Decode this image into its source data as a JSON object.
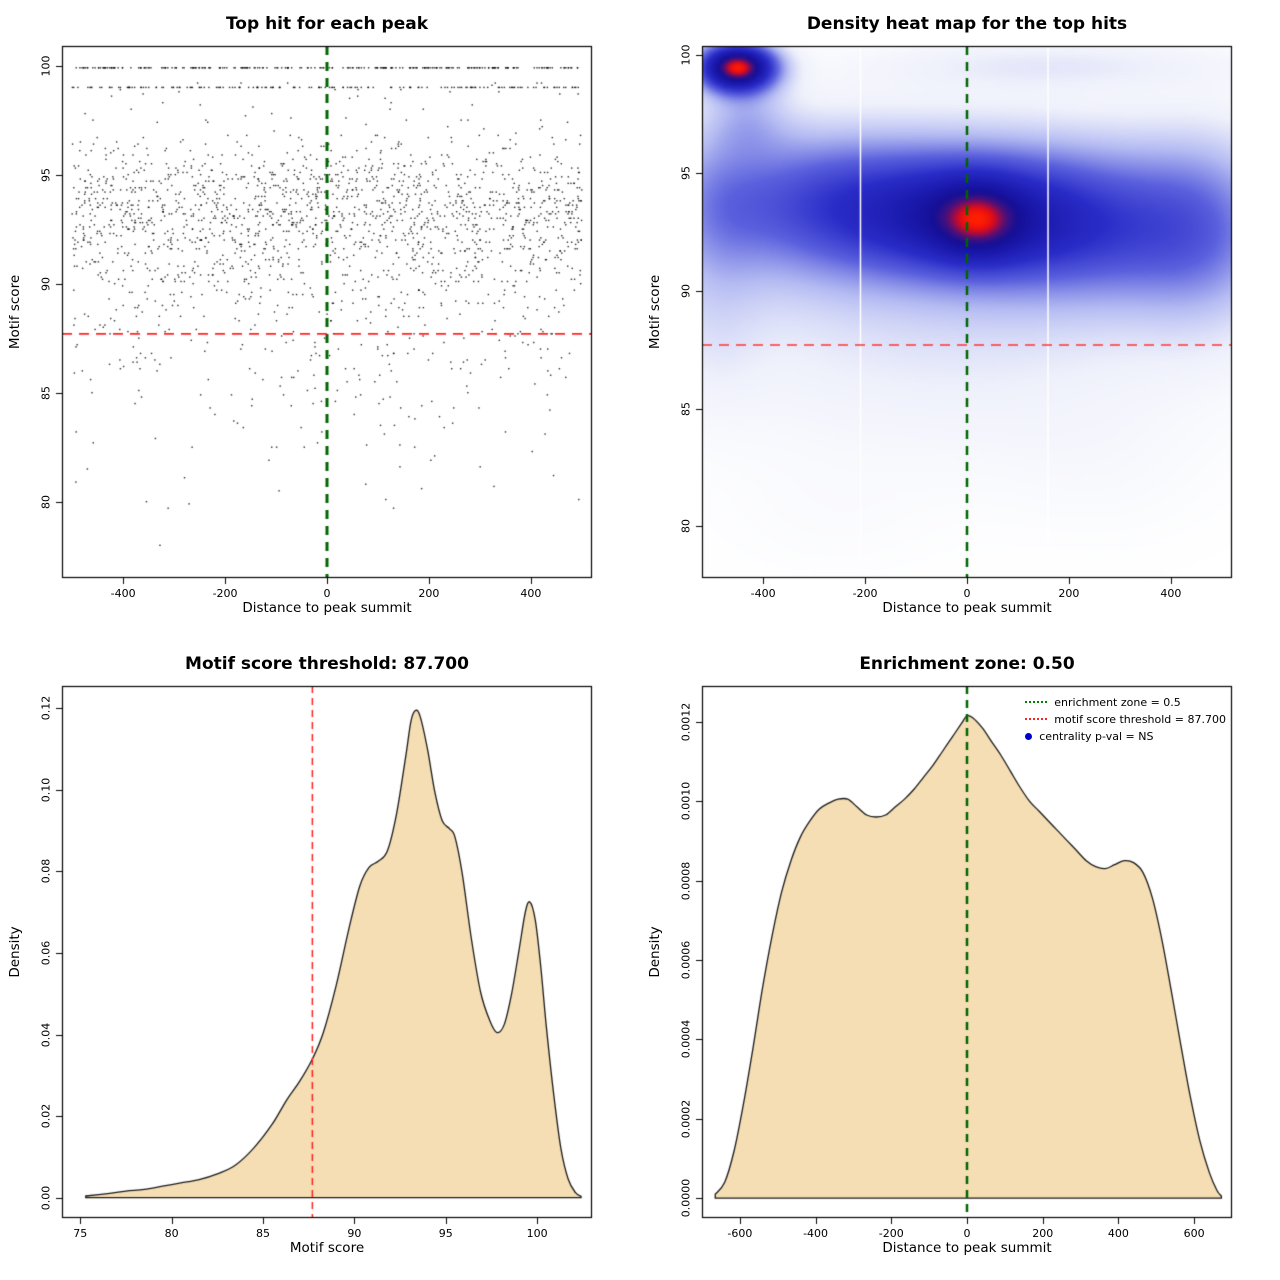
{
  "figure": {
    "background": "#ffffff"
  },
  "chart_data": [
    {
      "type": "scatter",
      "title": "Top hit for each peak",
      "xlabel": "Distance to peak summit",
      "ylabel": "Motif score",
      "xlim": [
        -520,
        520
      ],
      "ylim": [
        76.5,
        100.9
      ],
      "xticks": [
        {
          "v": -400,
          "l": "-400"
        },
        {
          "v": -200,
          "l": "-200"
        },
        {
          "v": 0,
          "l": "0"
        },
        {
          "v": 200,
          "l": "200"
        },
        {
          "v": 400,
          "l": "400"
        }
      ],
      "yticks": [
        {
          "v": 80,
          "l": "80"
        },
        {
          "v": 85,
          "l": "85"
        },
        {
          "v": 90,
          "l": "90"
        },
        {
          "v": 95,
          "l": "95"
        },
        {
          "v": 100,
          "l": "100"
        }
      ],
      "point_color": "#000000",
      "points": {
        "n": 2400,
        "seed": 1234,
        "x_range": [
          -500,
          500
        ],
        "quantize": 0.1,
        "y_clip": [
          77.3,
          99.3
        ],
        "bands": [
          {
            "y": 99.9,
            "frac": 0.105
          },
          {
            "y": 99.0,
            "frac": 0.065
          }
        ],
        "cloud": [
          {
            "mu": 93.2,
            "sd": 1.4,
            "w": 0.34
          },
          {
            "mu": 91.2,
            "sd": 2.0,
            "w": 0.2
          },
          {
            "mu": 94.6,
            "sd": 1.1,
            "w": 0.12
          },
          {
            "mu": 88.5,
            "sd": 2.6,
            "w": 0.09
          },
          {
            "mu": 85.5,
            "sd": 3.2,
            "w": 0.05
          },
          {
            "mu": 96.3,
            "sd": 1.0,
            "w": 0.02
          },
          {
            "mu": 98.6,
            "sd": 0.6,
            "w": 0.015
          }
        ]
      },
      "hline": {
        "y": 87.7,
        "color": "#ff2222",
        "dash": [
          10,
          7
        ],
        "width": 1.8
      },
      "vline": {
        "x": 0,
        "color": "#006400",
        "dash": [
          9,
          7
        ],
        "width": 3
      }
    },
    {
      "type": "heatmap",
      "title": "Density heat map for the top hits",
      "xlabel": "Distance to peak summit",
      "ylabel": "Motif score",
      "xlim": [
        -520,
        520
      ],
      "ylim": [
        77.8,
        100.4
      ],
      "xticks": [
        {
          "v": -400,
          "l": "-400"
        },
        {
          "v": -200,
          "l": "-200"
        },
        {
          "v": 0,
          "l": "0"
        },
        {
          "v": 200,
          "l": "200"
        },
        {
          "v": 400,
          "l": "400"
        }
      ],
      "yticks": [
        {
          "v": 80,
          "l": "80"
        },
        {
          "v": 85,
          "l": "85"
        },
        {
          "v": 90,
          "l": "90"
        },
        {
          "v": 95,
          "l": "95"
        },
        {
          "v": 100,
          "l": "100"
        }
      ],
      "blobs": [
        {
          "x": 10,
          "y": 93.1,
          "sx": 150,
          "sy": 1.7,
          "a": 1.05
        },
        {
          "x": 20,
          "y": 93.0,
          "sx": 55,
          "sy": 1.05,
          "a": 0.6
        },
        {
          "x": -290,
          "y": 93.6,
          "sx": 160,
          "sy": 2.0,
          "a": 0.6
        },
        {
          "x": 300,
          "y": 92.6,
          "sx": 170,
          "sy": 2.1,
          "a": 0.55
        },
        {
          "x": -450,
          "y": 99.5,
          "sx": 52,
          "sy": 0.7,
          "a": 2.2
        },
        {
          "x": 0,
          "y": 91.5,
          "sx": 430,
          "sy": 3.2,
          "a": 0.38
        },
        {
          "x": 0,
          "y": 95.4,
          "sx": 390,
          "sy": 1.8,
          "a": 0.22
        },
        {
          "x": 470,
          "y": 92.5,
          "sx": 95,
          "sy": 2.9,
          "a": 0.3
        },
        {
          "x": -495,
          "y": 93.5,
          "sx": 70,
          "sy": 2.6,
          "a": 0.26
        },
        {
          "x": -80,
          "y": 85.6,
          "sx": 360,
          "sy": 2.6,
          "a": 0.1
        },
        {
          "x": 160,
          "y": 99.6,
          "sx": 260,
          "sy": 0.75,
          "a": 0.2
        },
        {
          "x": -430,
          "y": 97.4,
          "sx": 60,
          "sy": 1.1,
          "a": 0.28
        },
        {
          "x": -500,
          "y": 88.0,
          "sx": 70,
          "sy": 2.2,
          "a": 0.1
        },
        {
          "x": 260,
          "y": 82.3,
          "sx": 160,
          "sy": 2.2,
          "a": 0.05
        },
        {
          "x": -260,
          "y": 80.3,
          "sx": 160,
          "sy": 1.8,
          "a": 0.04
        }
      ],
      "colormap": [
        [
          0,
          "#ffffff"
        ],
        [
          0.08,
          "#eef0fb"
        ],
        [
          0.2,
          "#b4bbf2"
        ],
        [
          0.35,
          "#5a60dd"
        ],
        [
          0.5,
          "#2a2cc8"
        ],
        [
          0.65,
          "#1b1aae"
        ],
        [
          0.78,
          "#150f96"
        ],
        [
          0.86,
          "#43107e"
        ],
        [
          0.91,
          "#8f0c52"
        ],
        [
          0.955,
          "#e30b16"
        ],
        [
          1,
          "#ff2000"
        ]
      ],
      "white_vlines": [
        -210,
        158
      ],
      "hline": {
        "y": 87.7,
        "color": "#ff3333",
        "dash": [
          10,
          7
        ],
        "width": 1.5
      },
      "vline": {
        "x": 0,
        "color": "#006400",
        "dash": [
          9,
          7
        ],
        "width": 2.5
      }
    },
    {
      "type": "area",
      "title": "Motif score threshold: 87.700",
      "xlabel": "Motif score",
      "ylabel": "Density",
      "xlim": [
        74,
        103
      ],
      "ylim": [
        -0.005,
        0.1255
      ],
      "xticks": [
        {
          "v": 75,
          "l": "75"
        },
        {
          "v": 80,
          "l": "80"
        },
        {
          "v": 85,
          "l": "85"
        },
        {
          "v": 90,
          "l": "90"
        },
        {
          "v": 95,
          "l": "95"
        },
        {
          "v": 100,
          "l": "100"
        }
      ],
      "yticks": [
        {
          "v": 0,
          "l": "0.00"
        },
        {
          "v": 0.02,
          "l": "0.02"
        },
        {
          "v": 0.04,
          "l": "0.04"
        },
        {
          "v": 0.06,
          "l": "0.06"
        },
        {
          "v": 0.08,
          "l": "0.08"
        },
        {
          "v": 0.1,
          "l": "0.10"
        },
        {
          "v": 0.12,
          "l": "0.12"
        }
      ],
      "fill": "#f5deb3",
      "stroke": "#1a1a1a",
      "curve": [
        [
          75.3,
          0.0004
        ],
        [
          76.5,
          0.001
        ],
        [
          77.5,
          0.0016
        ],
        [
          78.5,
          0.002
        ],
        [
          79.5,
          0.0028
        ],
        [
          80.5,
          0.0036
        ],
        [
          81.5,
          0.0044
        ],
        [
          82.5,
          0.0058
        ],
        [
          83.5,
          0.008
        ],
        [
          84.5,
          0.0122
        ],
        [
          85.5,
          0.018
        ],
        [
          86.3,
          0.024
        ],
        [
          87.0,
          0.0285
        ],
        [
          87.7,
          0.034
        ],
        [
          88.3,
          0.0405
        ],
        [
          89.0,
          0.052
        ],
        [
          89.7,
          0.066
        ],
        [
          90.3,
          0.0765
        ],
        [
          90.8,
          0.081
        ],
        [
          91.3,
          0.0825
        ],
        [
          91.8,
          0.085
        ],
        [
          92.3,
          0.094
        ],
        [
          92.8,
          0.108
        ],
        [
          93.1,
          0.117
        ],
        [
          93.35,
          0.1195
        ],
        [
          93.6,
          0.118
        ],
        [
          94.0,
          0.11
        ],
        [
          94.4,
          0.0995
        ],
        [
          94.8,
          0.0925
        ],
        [
          95.2,
          0.0905
        ],
        [
          95.5,
          0.0885
        ],
        [
          95.9,
          0.0795
        ],
        [
          96.4,
          0.0635
        ],
        [
          96.9,
          0.0505
        ],
        [
          97.4,
          0.0435
        ],
        [
          97.8,
          0.0405
        ],
        [
          98.2,
          0.0425
        ],
        [
          98.6,
          0.05
        ],
        [
          99.0,
          0.0605
        ],
        [
          99.35,
          0.07
        ],
        [
          99.6,
          0.0725
        ],
        [
          99.9,
          0.068
        ],
        [
          100.2,
          0.0565
        ],
        [
          100.5,
          0.042
        ],
        [
          100.9,
          0.0255
        ],
        [
          101.3,
          0.012
        ],
        [
          101.7,
          0.0045
        ],
        [
          102.1,
          0.0012
        ],
        [
          102.4,
          0.0003
        ]
      ],
      "vline": {
        "x": 87.7,
        "color": "#ff2222",
        "dash": [
          7,
          5
        ],
        "width": 1.5
      }
    },
    {
      "type": "area",
      "title": "Enrichment zone: 0.50",
      "xlabel": "Distance to peak summit",
      "ylabel": "Density",
      "xlim": [
        -700,
        700
      ],
      "ylim": [
        -5e-05,
        0.00129
      ],
      "xticks": [
        {
          "v": -600,
          "l": "-600"
        },
        {
          "v": -400,
          "l": "-400"
        },
        {
          "v": -200,
          "l": "-200"
        },
        {
          "v": 0,
          "l": "0"
        },
        {
          "v": 200,
          "l": "200"
        },
        {
          "v": 400,
          "l": "400"
        },
        {
          "v": 600,
          "l": "600"
        }
      ],
      "yticks": [
        {
          "v": 0,
          "l": "0.0000"
        },
        {
          "v": 0.0002,
          "l": "0.0002"
        },
        {
          "v": 0.0004,
          "l": "0.0004"
        },
        {
          "v": 0.0006,
          "l": "0.0006"
        },
        {
          "v": 0.0008,
          "l": "0.0008"
        },
        {
          "v": 0.001,
          "l": "0.0010"
        },
        {
          "v": 0.0012,
          "l": "0.0012"
        }
      ],
      "fill": "#f5deb3",
      "stroke": "#1a1a1a",
      "curve": [
        [
          -665,
          1e-05
        ],
        [
          -640,
          4e-05
        ],
        [
          -615,
          0.00012
        ],
        [
          -590,
          0.00024
        ],
        [
          -565,
          0.00038
        ],
        [
          -540,
          0.00053
        ],
        [
          -515,
          0.00066
        ],
        [
          -490,
          0.00077
        ],
        [
          -465,
          0.00085
        ],
        [
          -440,
          0.00091
        ],
        [
          -415,
          0.00095
        ],
        [
          -390,
          0.00098
        ],
        [
          -365,
          0.000995
        ],
        [
          -340,
          0.001005
        ],
        [
          -315,
          0.001005
        ],
        [
          -290,
          0.000985
        ],
        [
          -265,
          0.000965
        ],
        [
          -240,
          0.00096
        ],
        [
          -215,
          0.000965
        ],
        [
          -190,
          0.000985
        ],
        [
          -165,
          0.001005
        ],
        [
          -140,
          0.00103
        ],
        [
          -115,
          0.00106
        ],
        [
          -90,
          0.00109
        ],
        [
          -65,
          0.001125
        ],
        [
          -40,
          0.00116
        ],
        [
          -15,
          0.001195
        ],
        [
          0,
          0.001215
        ],
        [
          15,
          0.00121
        ],
        [
          40,
          0.001185
        ],
        [
          65,
          0.00115
        ],
        [
          90,
          0.001115
        ],
        [
          115,
          0.001075
        ],
        [
          140,
          0.001035
        ],
        [
          165,
          0.001
        ],
        [
          190,
          0.000975
        ],
        [
          215,
          0.00095
        ],
        [
          240,
          0.000925
        ],
        [
          265,
          0.0009
        ],
        [
          290,
          0.000875
        ],
        [
          315,
          0.00085
        ],
        [
          340,
          0.000835
        ],
        [
          365,
          0.00083
        ],
        [
          390,
          0.00084
        ],
        [
          415,
          0.00085
        ],
        [
          440,
          0.000845
        ],
        [
          465,
          0.00082
        ],
        [
          490,
          0.000755
        ],
        [
          515,
          0.00065
        ],
        [
          540,
          0.00052
        ],
        [
          565,
          0.000385
        ],
        [
          590,
          0.000255
        ],
        [
          615,
          0.000145
        ],
        [
          640,
          6.5e-05
        ],
        [
          660,
          2e-05
        ],
        [
          672,
          5e-06
        ]
      ],
      "vline": {
        "x": 0,
        "color": "#006400",
        "dash": [
          8,
          6
        ],
        "width": 2.5
      },
      "legend": {
        "items": [
          {
            "glyph": "line",
            "color": "#008000",
            "label": "enrichment zone = 0.5"
          },
          {
            "glyph": "line",
            "color": "#ff2222",
            "label": "motif score threshold = 87.700"
          },
          {
            "glyph": "dot",
            "color": "#0000cc",
            "label": "centrality p-val = NS"
          }
        ]
      }
    }
  ]
}
